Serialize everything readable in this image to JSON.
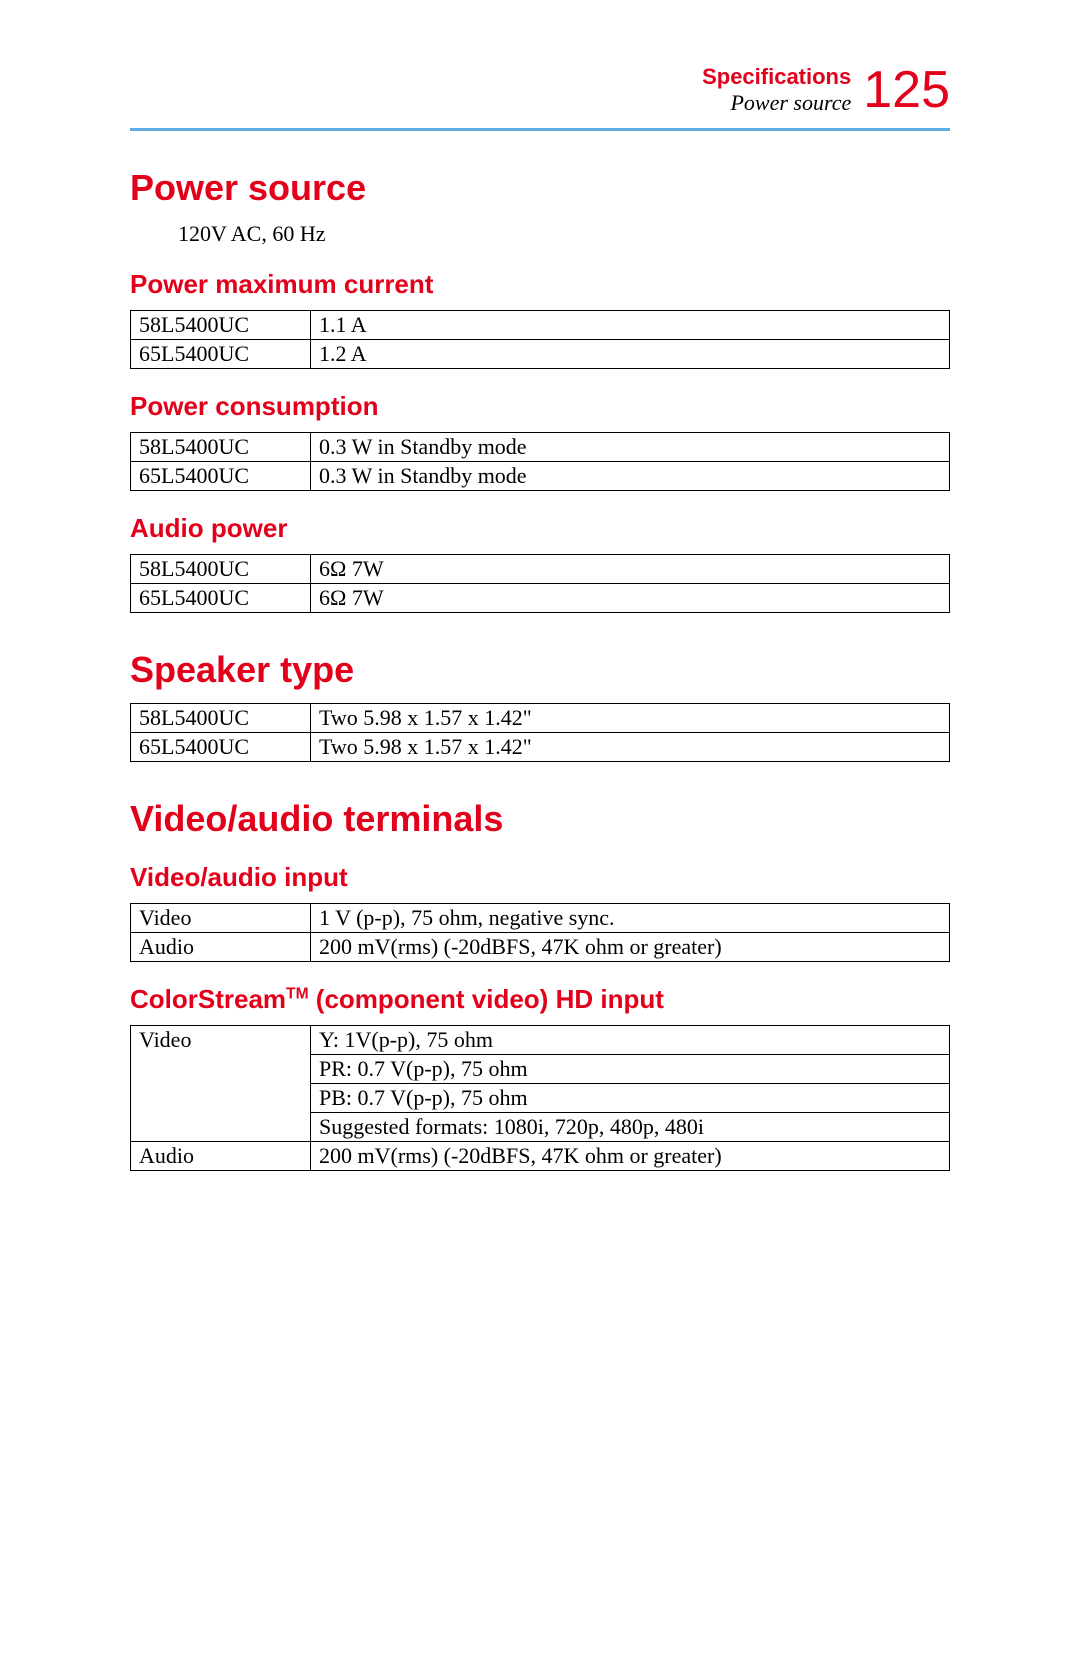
{
  "header": {
    "section": "Specifications",
    "subtitle": "Power source",
    "page_number": "125",
    "accent_color": "#e2001a",
    "rule_color": "#5dade2"
  },
  "sections": {
    "power_source": {
      "title": "Power source",
      "body": "120V AC, 60 Hz"
    },
    "power_max_current": {
      "title": "Power maximum current",
      "rows": [
        [
          "58L5400UC",
          "1.1 A"
        ],
        [
          "65L5400UC",
          "1.2 A"
        ]
      ]
    },
    "power_consumption": {
      "title": "Power consumption",
      "rows": [
        [
          "58L5400UC",
          "0.3 W in Standby mode"
        ],
        [
          "65L5400UC",
          "0.3 W in Standby mode"
        ]
      ]
    },
    "audio_power": {
      "title": "Audio power",
      "rows": [
        [
          "58L5400UC",
          "6Ω  7W"
        ],
        [
          "65L5400UC",
          "6Ω  7W"
        ]
      ]
    },
    "speaker_type": {
      "title": "Speaker type",
      "rows": [
        [
          "58L5400UC",
          "Two 5.98 x 1.57 x 1.42\""
        ],
        [
          "65L5400UC",
          "Two 5.98 x 1.57 x 1.42\""
        ]
      ]
    },
    "video_audio_terminals": {
      "title": "Video/audio terminals"
    },
    "video_audio_input": {
      "title": "Video/audio input",
      "rows": [
        [
          "Video",
          "1 V (p-p), 75 ohm, negative sync."
        ],
        [
          "Audio",
          "200 mV(rms) (-20dBFS, 47K ohm or greater)"
        ]
      ]
    },
    "colorstream": {
      "title_pre": "ColorStream",
      "title_sup": "TM",
      "title_post": " (component video) HD input",
      "video_label": "Video",
      "video_rows": [
        "Y: 1V(p-p), 75 ohm",
        "PR: 0.7 V(p-p), 75 ohm",
        "PB: 0.7 V(p-p), 75 ohm",
        "Suggested formats: 1080i, 720p, 480p, 480i"
      ],
      "audio_label": "Audio",
      "audio_value": "200 mV(rms) (-20dBFS, 47K ohm or greater)"
    }
  },
  "colors": {
    "red": "#e2001a",
    "text": "#000000"
  }
}
